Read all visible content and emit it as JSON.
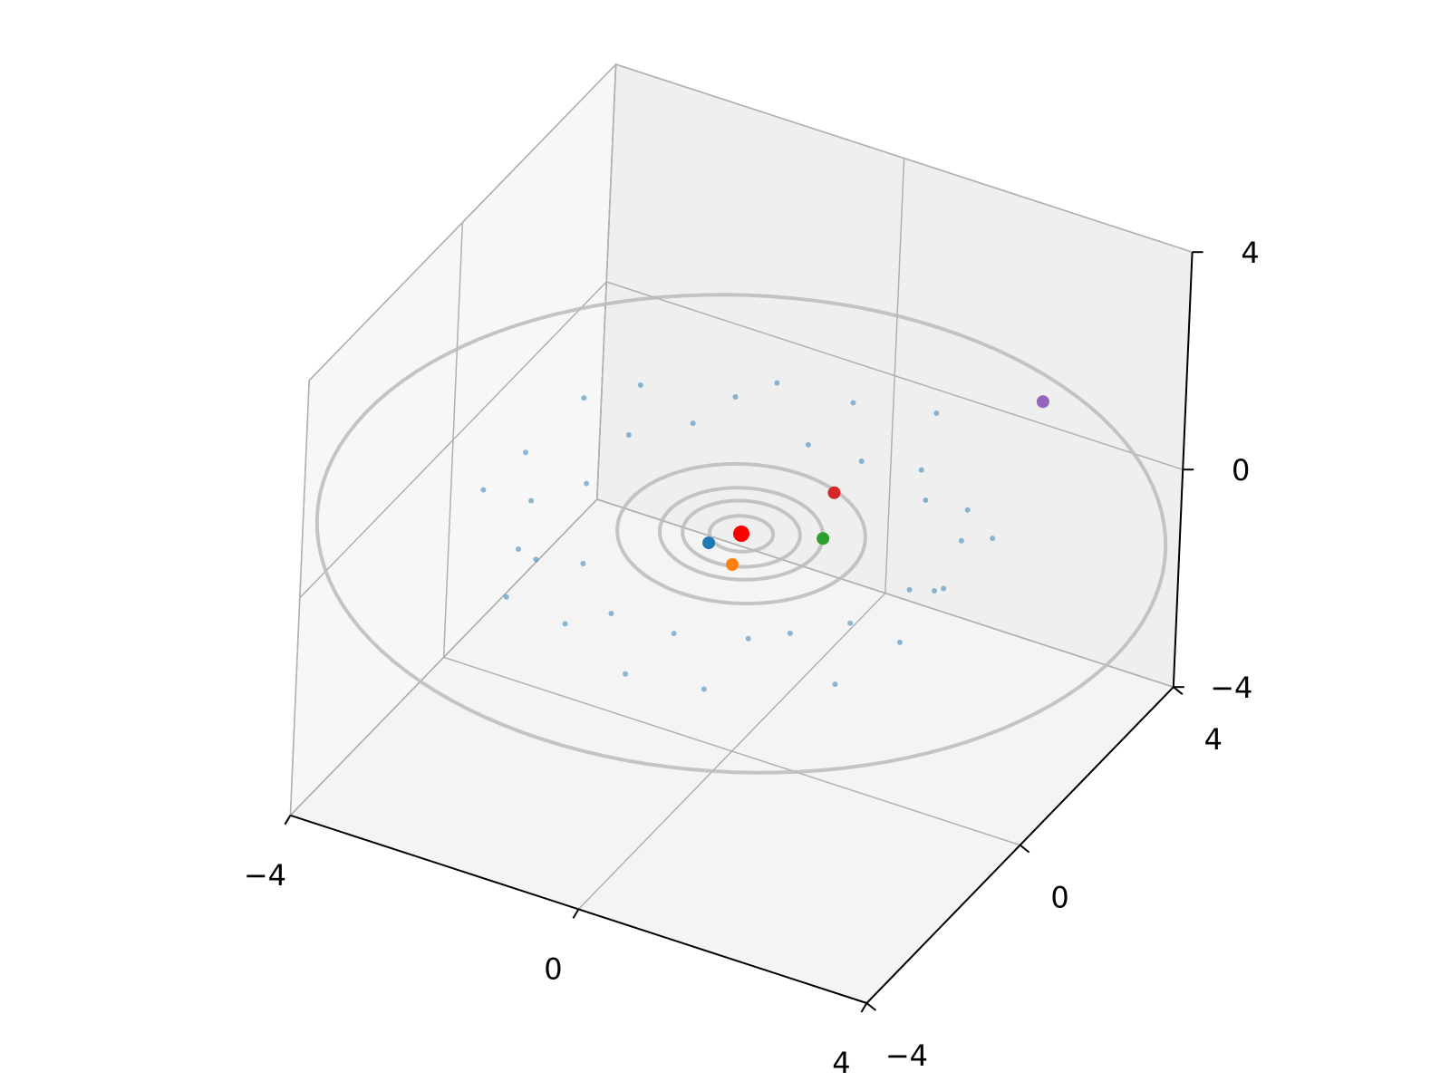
{
  "chart_data": {
    "type": "scatter3d",
    "xlim": [
      -4,
      4
    ],
    "ylim": [
      -4,
      4
    ],
    "zlim": [
      -4,
      4
    ],
    "xticks": [
      {
        "value": -4,
        "label": "−4"
      },
      0,
      4
    ],
    "yticks": [
      {
        "value": -4,
        "label": "−4"
      },
      0,
      4
    ],
    "zticks": [
      {
        "value": -4,
        "label": "−4"
      },
      0,
      4
    ],
    "grid": true,
    "orbits": {
      "color": "#bbbbbb",
      "radii": [
        0.39,
        0.72,
        1.0,
        1.52,
        5.2
      ]
    },
    "bodies": [
      {
        "color": "#ff0000",
        "x": [
          0
        ],
        "y": [
          0
        ],
        "z": [
          0
        ]
      },
      {
        "color": "#1f77b4",
        "x": [
          -0.25
        ],
        "y": [
          -0.38
        ],
        "z": [
          0
        ]
      },
      {
        "color": "#ff7f0e",
        "x": [
          0.22
        ],
        "y": [
          -0.65
        ],
        "z": [
          0
        ]
      },
      {
        "color": "#2ca02c",
        "x": [
          0.91
        ],
        "y": [
          0.42
        ],
        "z": [
          0
        ]
      },
      {
        "color": "#d62728",
        "x": [
          0.56
        ],
        "y": [
          1.37
        ],
        "z": [
          0
        ]
      },
      {
        "color": "#9467bd",
        "x": [
          1.83
        ],
        "y": [
          4.43
        ],
        "z": [
          0
        ]
      }
    ],
    "asteroids": {
      "color": "#1f77b4",
      "x": [
        2.8,
        2.46,
        2.91,
        2.34,
        1.76,
        1.93,
        1.3,
        1.09,
        0.42,
        0,
        -0.47,
        -1.06,
        -1.25,
        -1.8,
        -2.53,
        -2.25,
        -2.73,
        -2.36,
        -3.0,
        -2.66,
        -3.01,
        -2.17,
        -2.14,
        -1.99,
        -1.15,
        -0.99,
        -0.45,
        0,
        0.47,
        1.09,
        1.2,
        1.8,
        2.37,
        2.17,
        2.73,
        2.56
      ],
      "y": [
        0,
        0.43,
        1.06,
        1.35,
        1.48,
        2.3,
        2.25,
        3.01,
        2.36,
        2.9,
        2.66,
        2.91,
        2.17,
        2.14,
        2.12,
        1.3,
        0.99,
        0.42,
        0,
        -0.47,
        -1.09,
        -1.25,
        -1.8,
        -2.37,
        -1.99,
        -2.73,
        -2.56,
        -3.0,
        -2.66,
        -3.01,
        -2.08,
        -2.14,
        -1.99,
        -1.25,
        -0.99,
        -0.45
      ],
      "z": [
        0.2,
        -0.3,
        0.4,
        -0.1,
        0.3,
        -0.4,
        0.1,
        0.5,
        -0.2,
        0.3,
        -0.5,
        0.2,
        0.4,
        -0.3,
        0.1,
        -0.1,
        0.6,
        -0.4,
        0.2,
        -0.2,
        0.3,
        -0.5,
        0.1,
        -0.3,
        0.4,
        -0.1,
        0.2,
        -0.4,
        0.3,
        -0.2,
        0.1,
        0.5,
        -0.3,
        0.2,
        -0.1,
        0.4
      ]
    }
  }
}
